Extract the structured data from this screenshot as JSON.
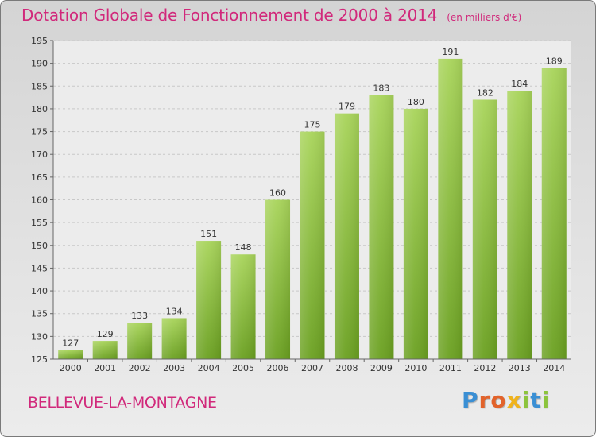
{
  "title": "Dotation Globale de Fonctionnement de 2000 à 2014",
  "unit_note": "(en milliers d'€)",
  "location": "BELLEVUE-LA-MONTAGNE",
  "brand": {
    "letters": [
      "P",
      "r",
      "o",
      "x",
      "i",
      "t",
      "i"
    ],
    "colors": [
      "#3a8fd4",
      "#e2632b",
      "#e2632b",
      "#f0b31c",
      "#8cc43c",
      "#3a8fd4",
      "#8cc43c"
    ]
  },
  "colors": {
    "bar_top": "#a8d45a",
    "bar_bottom": "#6aa020",
    "accent": "#d1297b"
  },
  "chart_data": {
    "type": "bar",
    "title": "Dotation Globale de Fonctionnement de 2000 à 2014",
    "subtitle": "(en milliers d'€)",
    "xlabel": "",
    "ylabel": "",
    "categories": [
      "2000",
      "2001",
      "2002",
      "2003",
      "2004",
      "2005",
      "2006",
      "2007",
      "2008",
      "2009",
      "2010",
      "2011",
      "2012",
      "2013",
      "2014"
    ],
    "values": [
      127,
      129,
      133,
      134,
      151,
      148,
      160,
      175,
      179,
      183,
      180,
      191,
      182,
      184,
      189
    ],
    "ylim": [
      125,
      195
    ],
    "yticks": [
      125,
      130,
      135,
      140,
      145,
      150,
      155,
      160,
      165,
      170,
      175,
      180,
      185,
      190,
      195
    ],
    "grid": true,
    "legend": "none"
  }
}
